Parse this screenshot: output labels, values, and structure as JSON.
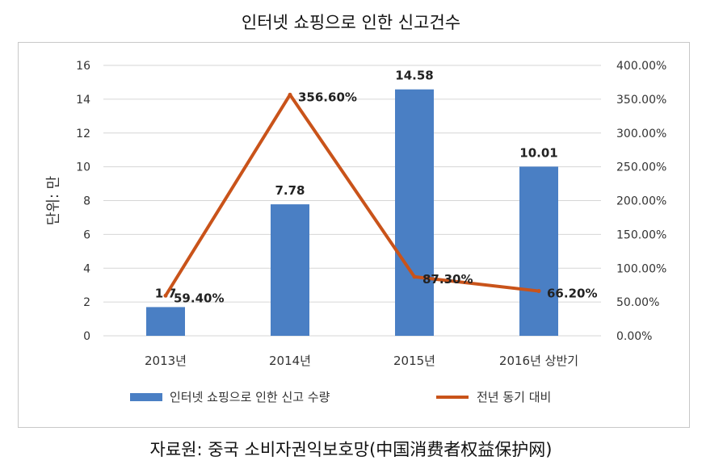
{
  "title": "인터넷 쇼핑으로 인한 신고건수",
  "source": "자료원: 중국 소비자권익보호망(中国消费者权益保护网)",
  "chart_data": {
    "type": "bar",
    "title": "인터넷 쇼핑으로 인한 신고건수",
    "categories": [
      "2013년",
      "2014년",
      "2015년",
      "2016년 상반기"
    ],
    "ylabel": "단위: 만",
    "ylim": [
      0,
      16
    ],
    "yticks": [
      "0",
      "2",
      "4",
      "6",
      "8",
      "10",
      "12",
      "14",
      "16"
    ],
    "y2lim": [
      0,
      400
    ],
    "y2ticks": [
      "0.00%",
      "50.00%",
      "100.00%",
      "150.00%",
      "200.00%",
      "250.00%",
      "300.00%",
      "350.00%",
      "400.00%"
    ],
    "grid": true,
    "legend_position": "bottom",
    "series": [
      {
        "name": "인터넷 쇼핑으로 인한 신고 수량",
        "type": "bar",
        "axis": "left",
        "color": "#4a7fc4",
        "values": [
          1.7,
          7.78,
          14.58,
          10.01
        ],
        "labels": [
          "1.7",
          "7.78",
          "14.58",
          "10.01"
        ]
      },
      {
        "name": "전년 동기 대비",
        "type": "line",
        "axis": "right",
        "color": "#c9531a",
        "values": [
          59.4,
          356.6,
          87.3,
          66.2
        ],
        "labels": [
          "59.40%",
          "356.60%",
          "87.30%",
          "66.20%"
        ]
      }
    ]
  }
}
